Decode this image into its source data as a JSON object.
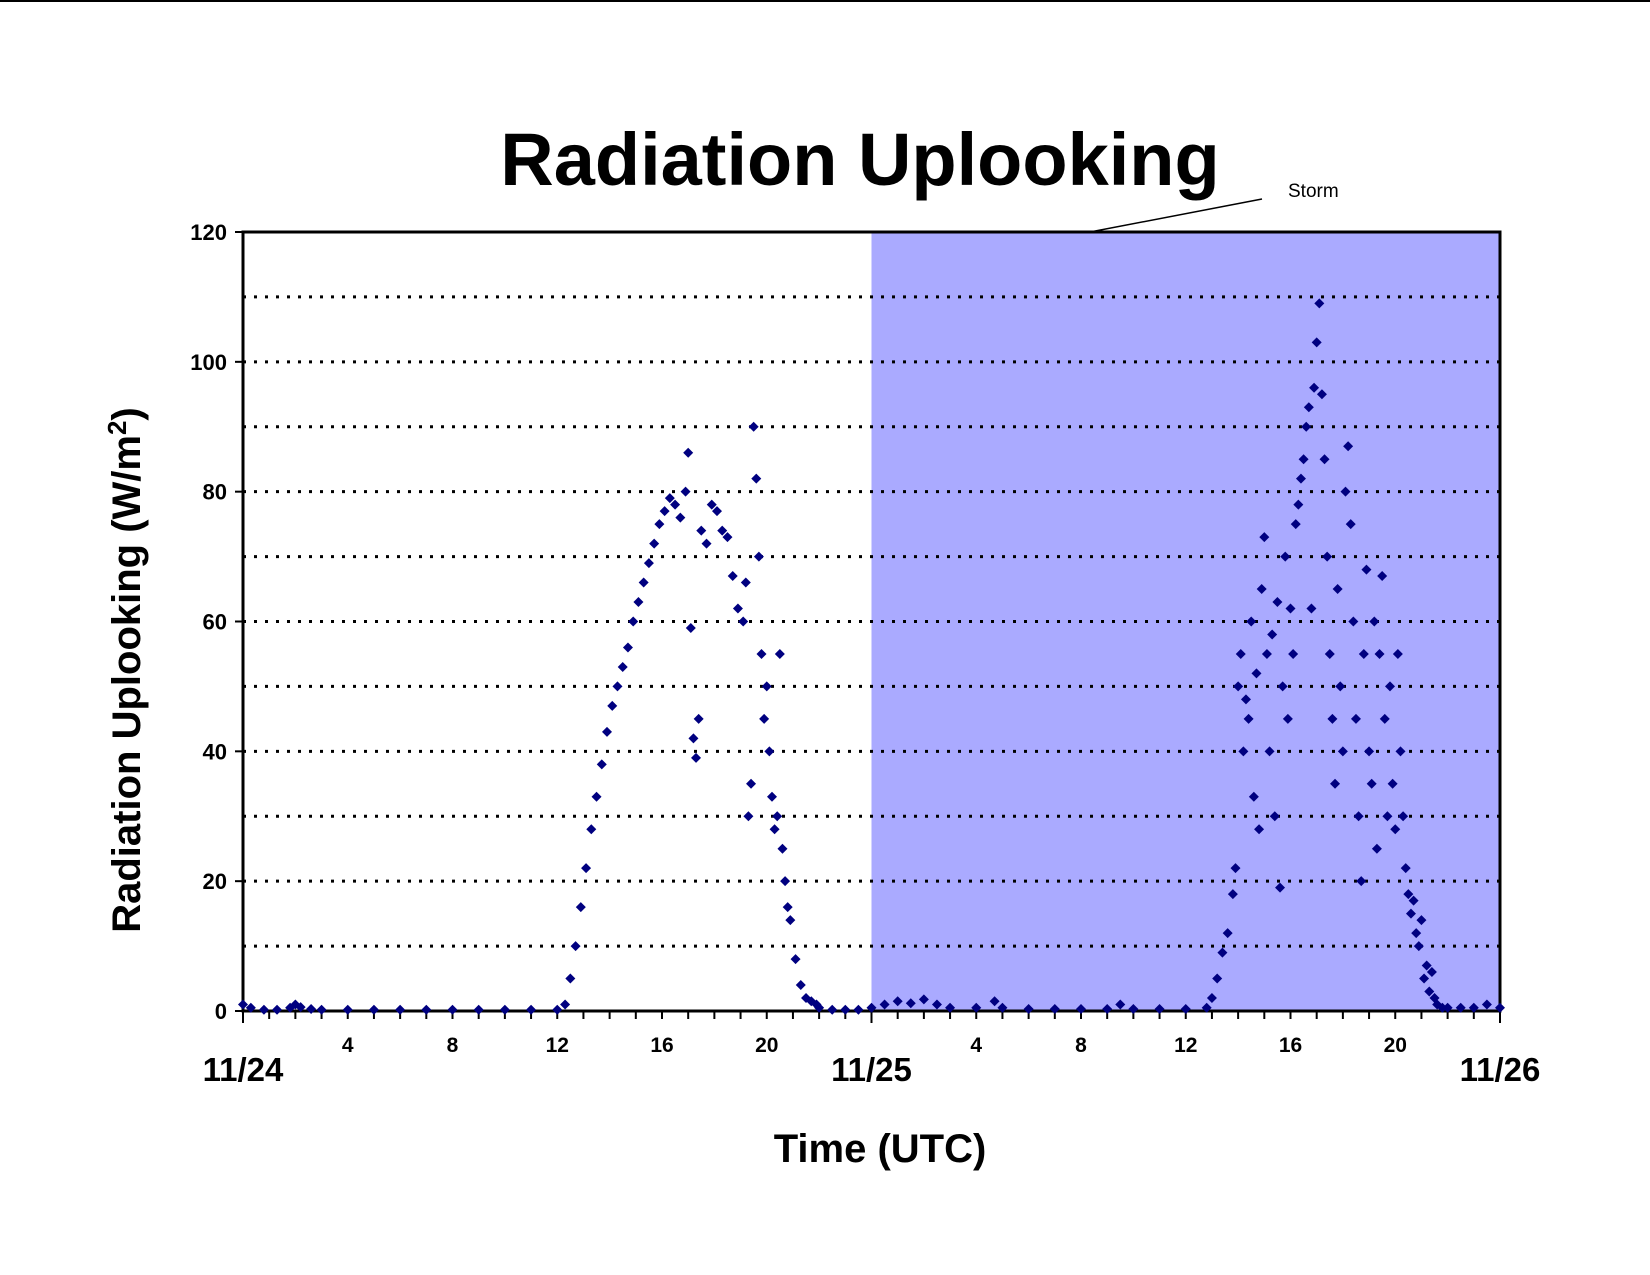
{
  "chart_data": {
    "type": "scatter",
    "title": "Radiation Uplooking",
    "xlabel": "Time (UTC)",
    "ylabel_main": "Radiation Uplooking (W/m",
    "ylabel_sup": "2",
    "ylabel_close": ")",
    "x_unit": "hours since 11/24 00:00 UTC",
    "xlim": [
      0,
      48
    ],
    "ylim": [
      0,
      120
    ],
    "y_ticks": [
      "0",
      "20",
      "40",
      "60",
      "80",
      "100",
      "120"
    ],
    "y_gridlines": [
      10,
      20,
      30,
      40,
      50,
      60,
      70,
      80,
      90,
      100,
      110
    ],
    "grid": "dotted horizontal",
    "x_hour_ticks": [
      {
        "x": 4,
        "label": "4"
      },
      {
        "x": 8,
        "label": "8"
      },
      {
        "x": 12,
        "label": "12"
      },
      {
        "x": 16,
        "label": "16"
      },
      {
        "x": 20,
        "label": "20"
      },
      {
        "x": 28,
        "label": "4"
      },
      {
        "x": 32,
        "label": "8"
      },
      {
        "x": 36,
        "label": "12"
      },
      {
        "x": 40,
        "label": "16"
      },
      {
        "x": 44,
        "label": "20"
      }
    ],
    "x_date_ticks": [
      {
        "x": 0,
        "label": "11/24"
      },
      {
        "x": 24,
        "label": "11/25"
      },
      {
        "x": 48,
        "label": "11/26"
      }
    ],
    "shaded_region": {
      "x_start": 24,
      "x_end": 48,
      "color": "#aaaaff",
      "label": "Storm"
    },
    "series": [
      {
        "color": "#000080",
        "marker": "diamond",
        "points": [
          [
            0.0,
            1.0
          ],
          [
            0.3,
            0.5
          ],
          [
            0.8,
            0.2
          ],
          [
            1.3,
            0.2
          ],
          [
            1.8,
            0.5
          ],
          [
            2.0,
            1.0
          ],
          [
            2.2,
            0.6
          ],
          [
            2.6,
            0.3
          ],
          [
            3.0,
            0.2
          ],
          [
            4.0,
            0.2
          ],
          [
            5.0,
            0.2
          ],
          [
            6.0,
            0.2
          ],
          [
            7.0,
            0.2
          ],
          [
            8.0,
            0.2
          ],
          [
            9.0,
            0.2
          ],
          [
            10.0,
            0.2
          ],
          [
            11.0,
            0.2
          ],
          [
            12.0,
            0.2
          ],
          [
            12.3,
            1.0
          ],
          [
            12.5,
            5.0
          ],
          [
            12.7,
            10.0
          ],
          [
            12.9,
            16.0
          ],
          [
            13.1,
            22.0
          ],
          [
            13.3,
            28.0
          ],
          [
            13.5,
            33.0
          ],
          [
            13.7,
            38.0
          ],
          [
            13.9,
            43.0
          ],
          [
            14.1,
            47.0
          ],
          [
            14.3,
            50.0
          ],
          [
            14.5,
            53.0
          ],
          [
            14.7,
            56.0
          ],
          [
            14.9,
            60.0
          ],
          [
            15.1,
            63.0
          ],
          [
            15.3,
            66.0
          ],
          [
            15.5,
            69.0
          ],
          [
            15.7,
            72.0
          ],
          [
            15.9,
            75.0
          ],
          [
            16.1,
            77.0
          ],
          [
            16.3,
            79.0
          ],
          [
            16.5,
            78.0
          ],
          [
            16.7,
            76.0
          ],
          [
            16.9,
            80.0
          ],
          [
            17.0,
            86.0
          ],
          [
            17.1,
            59.0
          ],
          [
            17.2,
            42.0
          ],
          [
            17.3,
            39.0
          ],
          [
            17.4,
            45.0
          ],
          [
            17.5,
            74.0
          ],
          [
            17.7,
            72.0
          ],
          [
            17.9,
            78.0
          ],
          [
            18.1,
            77.0
          ],
          [
            18.3,
            74.0
          ],
          [
            18.5,
            73.0
          ],
          [
            18.7,
            67.0
          ],
          [
            18.9,
            62.0
          ],
          [
            19.1,
            60.0
          ],
          [
            19.2,
            66.0
          ],
          [
            19.3,
            30.0
          ],
          [
            19.4,
            35.0
          ],
          [
            19.5,
            90.0
          ],
          [
            19.6,
            82.0
          ],
          [
            19.7,
            70.0
          ],
          [
            19.8,
            55.0
          ],
          [
            19.9,
            45.0
          ],
          [
            20.0,
            50.0
          ],
          [
            20.1,
            40.0
          ],
          [
            20.2,
            33.0
          ],
          [
            20.3,
            28.0
          ],
          [
            20.4,
            30.0
          ],
          [
            20.5,
            55.0
          ],
          [
            20.6,
            25.0
          ],
          [
            20.7,
            20.0
          ],
          [
            20.8,
            16.0
          ],
          [
            20.9,
            14.0
          ],
          [
            21.1,
            8.0
          ],
          [
            21.3,
            4.0
          ],
          [
            21.5,
            2.0
          ],
          [
            21.7,
            1.5
          ],
          [
            21.9,
            1.0
          ],
          [
            22.0,
            0.5
          ],
          [
            22.5,
            0.2
          ],
          [
            23.0,
            0.2
          ],
          [
            23.5,
            0.2
          ],
          [
            24.0,
            0.5
          ],
          [
            24.5,
            1.0
          ],
          [
            25.0,
            1.5
          ],
          [
            25.5,
            1.2
          ],
          [
            26.0,
            1.8
          ],
          [
            26.5,
            1.0
          ],
          [
            27.0,
            0.5
          ],
          [
            28.0,
            0.5
          ],
          [
            28.7,
            1.5
          ],
          [
            29.0,
            0.5
          ],
          [
            30.0,
            0.3
          ],
          [
            31.0,
            0.3
          ],
          [
            32.0,
            0.3
          ],
          [
            33.0,
            0.3
          ],
          [
            33.5,
            1.0
          ],
          [
            34.0,
            0.3
          ],
          [
            35.0,
            0.3
          ],
          [
            36.0,
            0.3
          ],
          [
            36.8,
            0.5
          ],
          [
            37.0,
            2.0
          ],
          [
            37.2,
            5.0
          ],
          [
            37.4,
            9.0
          ],
          [
            37.6,
            12.0
          ],
          [
            37.8,
            18.0
          ],
          [
            37.9,
            22.0
          ],
          [
            38.0,
            50.0
          ],
          [
            38.1,
            55.0
          ],
          [
            38.2,
            40.0
          ],
          [
            38.3,
            48.0
          ],
          [
            38.4,
            45.0
          ],
          [
            38.5,
            60.0
          ],
          [
            38.6,
            33.0
          ],
          [
            38.7,
            52.0
          ],
          [
            38.8,
            28.0
          ],
          [
            38.9,
            65.0
          ],
          [
            39.0,
            73.0
          ],
          [
            39.1,
            55.0
          ],
          [
            39.2,
            40.0
          ],
          [
            39.3,
            58.0
          ],
          [
            39.4,
            30.0
          ],
          [
            39.5,
            63.0
          ],
          [
            39.6,
            19.0
          ],
          [
            39.7,
            50.0
          ],
          [
            39.8,
            70.0
          ],
          [
            39.9,
            45.0
          ],
          [
            40.0,
            62.0
          ],
          [
            40.1,
            55.0
          ],
          [
            40.2,
            75.0
          ],
          [
            40.3,
            78.0
          ],
          [
            40.4,
            82.0
          ],
          [
            40.5,
            85.0
          ],
          [
            40.6,
            90.0
          ],
          [
            40.7,
            93.0
          ],
          [
            40.8,
            62.0
          ],
          [
            40.9,
            96.0
          ],
          [
            41.0,
            103.0
          ],
          [
            41.1,
            109.0
          ],
          [
            41.2,
            95.0
          ],
          [
            41.3,
            85.0
          ],
          [
            41.4,
            70.0
          ],
          [
            41.5,
            55.0
          ],
          [
            41.6,
            45.0
          ],
          [
            41.7,
            35.0
          ],
          [
            41.8,
            65.0
          ],
          [
            41.9,
            50.0
          ],
          [
            42.0,
            40.0
          ],
          [
            42.1,
            80.0
          ],
          [
            42.2,
            87.0
          ],
          [
            42.3,
            75.0
          ],
          [
            42.4,
            60.0
          ],
          [
            42.5,
            45.0
          ],
          [
            42.6,
            30.0
          ],
          [
            42.7,
            20.0
          ],
          [
            42.8,
            55.0
          ],
          [
            42.9,
            68.0
          ],
          [
            43.0,
            40.0
          ],
          [
            43.1,
            35.0
          ],
          [
            43.2,
            60.0
          ],
          [
            43.3,
            25.0
          ],
          [
            43.4,
            55.0
          ],
          [
            43.5,
            67.0
          ],
          [
            43.6,
            45.0
          ],
          [
            43.7,
            30.0
          ],
          [
            43.8,
            50.0
          ],
          [
            43.9,
            35.0
          ],
          [
            44.0,
            28.0
          ],
          [
            44.1,
            55.0
          ],
          [
            44.2,
            40.0
          ],
          [
            44.3,
            30.0
          ],
          [
            44.4,
            22.0
          ],
          [
            44.5,
            18.0
          ],
          [
            44.6,
            15.0
          ],
          [
            44.7,
            17.0
          ],
          [
            44.8,
            12.0
          ],
          [
            44.9,
            10.0
          ],
          [
            45.0,
            14.0
          ],
          [
            45.1,
            5.0
          ],
          [
            45.2,
            7.0
          ],
          [
            45.3,
            3.0
          ],
          [
            45.4,
            6.0
          ],
          [
            45.5,
            2.0
          ],
          [
            45.6,
            1.0
          ],
          [
            45.8,
            0.5
          ],
          [
            46.0,
            0.5
          ],
          [
            46.5,
            0.5
          ],
          [
            47.0,
            0.5
          ],
          [
            47.5,
            1.0
          ],
          [
            48.0,
            0.5
          ]
        ]
      }
    ]
  }
}
